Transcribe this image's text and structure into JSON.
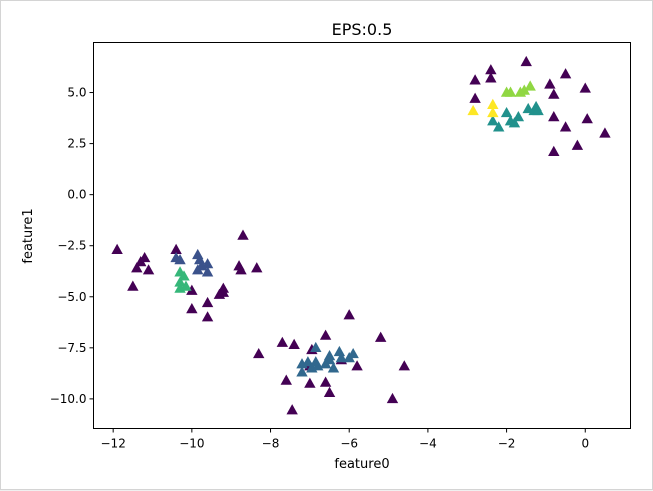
{
  "chart_data": {
    "type": "scatter",
    "title": "EPS:0.5",
    "xlabel": "feature0",
    "ylabel": "feature1",
    "xlim": [
      -12.5,
      1.15
    ],
    "ylim": [
      -11.45,
      7.45
    ],
    "xticks": [
      -12,
      -10,
      -8,
      -6,
      -4,
      -2,
      0
    ],
    "xtick_labels": [
      "−12",
      "−10",
      "−8",
      "−6",
      "−4",
      "−2",
      "0"
    ],
    "yticks": [
      -10.0,
      -7.5,
      -5.0,
      -2.5,
      0.0,
      2.5,
      5.0
    ],
    "ytick_labels": [
      "−10.0",
      "−7.5",
      "−5.0",
      "−2.5",
      "0.0",
      "2.5",
      "5.0"
    ],
    "marker": "triangle",
    "grid": false,
    "legend": false,
    "colormap": "viridis",
    "clusters": {
      "-1": "#440154",
      "0": "#3b528b",
      "1": "#31688e",
      "2": "#21918c",
      "3": "#35b779",
      "4": "#90d743",
      "5": "#fde725"
    },
    "series": [
      {
        "cluster": -1,
        "color": "#440154",
        "points": [
          [
            -11.9,
            -2.7
          ],
          [
            -11.3,
            -3.3
          ],
          [
            -11.2,
            -3.1
          ],
          [
            -11.1,
            -3.7
          ],
          [
            -11.4,
            -3.6
          ],
          [
            -11.5,
            -4.5
          ],
          [
            -10.4,
            -2.7
          ],
          [
            -10.0,
            -4.7
          ],
          [
            -10.0,
            -5.6
          ],
          [
            -9.6,
            -5.3
          ],
          [
            -9.6,
            -6.0
          ],
          [
            -9.2,
            -4.6
          ],
          [
            -9.2,
            -4.8
          ],
          [
            -9.3,
            -4.9
          ],
          [
            -8.8,
            -3.5
          ],
          [
            -8.75,
            -3.7
          ],
          [
            -8.7,
            -2.0
          ],
          [
            -8.35,
            -3.6
          ],
          [
            -8.3,
            -7.8
          ],
          [
            -7.7,
            -7.25
          ],
          [
            -7.6,
            -9.1
          ],
          [
            -7.4,
            -7.35
          ],
          [
            -7.45,
            -10.55
          ],
          [
            -7.0,
            -9.25
          ],
          [
            -6.95,
            -7.6
          ],
          [
            -7.0,
            -8.4
          ],
          [
            -6.6,
            -6.9
          ],
          [
            -6.6,
            -9.2
          ],
          [
            -6.5,
            -9.7
          ],
          [
            -6.2,
            -8.1
          ],
          [
            -6.0,
            -5.9
          ],
          [
            -5.8,
            -8.4
          ],
          [
            -5.2,
            -7.0
          ],
          [
            -4.9,
            -10.0
          ],
          [
            -4.6,
            -8.4
          ],
          [
            -2.8,
            5.6
          ],
          [
            -2.8,
            4.7
          ],
          [
            -2.4,
            6.1
          ],
          [
            -2.4,
            5.7
          ],
          [
            -1.5,
            6.5
          ],
          [
            -0.9,
            5.4
          ],
          [
            -0.8,
            4.9
          ],
          [
            -0.8,
            3.8
          ],
          [
            -0.8,
            2.1
          ],
          [
            -0.5,
            5.9
          ],
          [
            -0.5,
            3.3
          ],
          [
            -0.2,
            2.4
          ],
          [
            0.0,
            5.2
          ],
          [
            0.05,
            3.7
          ],
          [
            0.5,
            3.0
          ]
        ]
      },
      {
        "cluster": 0,
        "color": "#3b528b",
        "points": [
          [
            -10.4,
            -3.1
          ],
          [
            -10.3,
            -3.2
          ],
          [
            -9.85,
            -2.95
          ],
          [
            -9.8,
            -3.2
          ],
          [
            -9.75,
            -3.5
          ],
          [
            -9.85,
            -3.7
          ],
          [
            -9.6,
            -3.4
          ],
          [
            -9.6,
            -3.8
          ]
        ]
      },
      {
        "cluster": 1,
        "color": "#31688e",
        "points": [
          [
            -7.2,
            -8.3
          ],
          [
            -7.2,
            -8.7
          ],
          [
            -7.05,
            -8.2
          ],
          [
            -6.95,
            -8.5
          ],
          [
            -6.85,
            -8.2
          ],
          [
            -6.8,
            -8.4
          ],
          [
            -6.85,
            -7.5
          ],
          [
            -6.6,
            -8.3
          ],
          [
            -6.5,
            -8.1
          ],
          [
            -6.5,
            -7.9
          ],
          [
            -6.4,
            -8.5
          ],
          [
            -6.25,
            -7.7
          ],
          [
            -6.2,
            -8.0
          ],
          [
            -6.0,
            -8.0
          ],
          [
            -5.9,
            -7.8
          ]
        ]
      },
      {
        "cluster": 2,
        "color": "#21918c",
        "points": [
          [
            -2.35,
            3.6
          ],
          [
            -2.2,
            3.3
          ],
          [
            -2.0,
            4.0
          ],
          [
            -1.9,
            3.6
          ],
          [
            -1.8,
            3.5
          ],
          [
            -1.7,
            3.8
          ],
          [
            -1.45,
            4.2
          ],
          [
            -1.3,
            4.1
          ],
          [
            -1.25,
            4.3
          ],
          [
            -1.2,
            4.1
          ]
        ]
      },
      {
        "cluster": 3,
        "color": "#35b779",
        "points": [
          [
            -10.3,
            -3.8
          ],
          [
            -10.2,
            -4.0
          ],
          [
            -10.3,
            -4.3
          ],
          [
            -10.3,
            -4.6
          ],
          [
            -10.15,
            -4.5
          ]
        ]
      },
      {
        "cluster": 4,
        "color": "#90d743",
        "points": [
          [
            -2.0,
            5.0
          ],
          [
            -1.9,
            5.0
          ],
          [
            -1.65,
            5.0
          ],
          [
            -1.55,
            5.1
          ],
          [
            -1.4,
            5.3
          ]
        ]
      },
      {
        "cluster": 5,
        "color": "#fde725",
        "points": [
          [
            -2.85,
            4.1
          ],
          [
            -2.35,
            4.4
          ],
          [
            -2.35,
            4.0
          ]
        ]
      }
    ]
  }
}
